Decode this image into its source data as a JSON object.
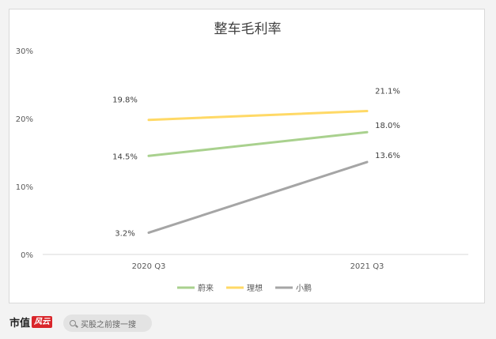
{
  "chart_data": {
    "type": "line",
    "title": "整车毛利率",
    "categories": [
      "2020 Q3",
      "2021 Q3"
    ],
    "y_ticks": [
      "0%",
      "10%",
      "20%",
      "30%"
    ],
    "ylim": [
      0,
      30
    ],
    "grid": false,
    "legend_position": "bottom",
    "series": [
      {
        "name": "蔚来",
        "values": [
          14.5,
          18.0
        ],
        "labels": [
          "14.5%",
          "18.0%"
        ],
        "color": "#a9d18e"
      },
      {
        "name": "理想",
        "values": [
          19.8,
          21.1
        ],
        "labels": [
          "19.8%",
          "21.1%"
        ],
        "color": "#ffd966"
      },
      {
        "name": "小鹏",
        "values": [
          3.2,
          13.6
        ],
        "labels": [
          "3.2%",
          "13.6%"
        ],
        "color": "#a5a5a5"
      }
    ]
  },
  "footer": {
    "brand": "市值",
    "brand_mark": "风云",
    "search_text": "买股之前搜一搜"
  }
}
